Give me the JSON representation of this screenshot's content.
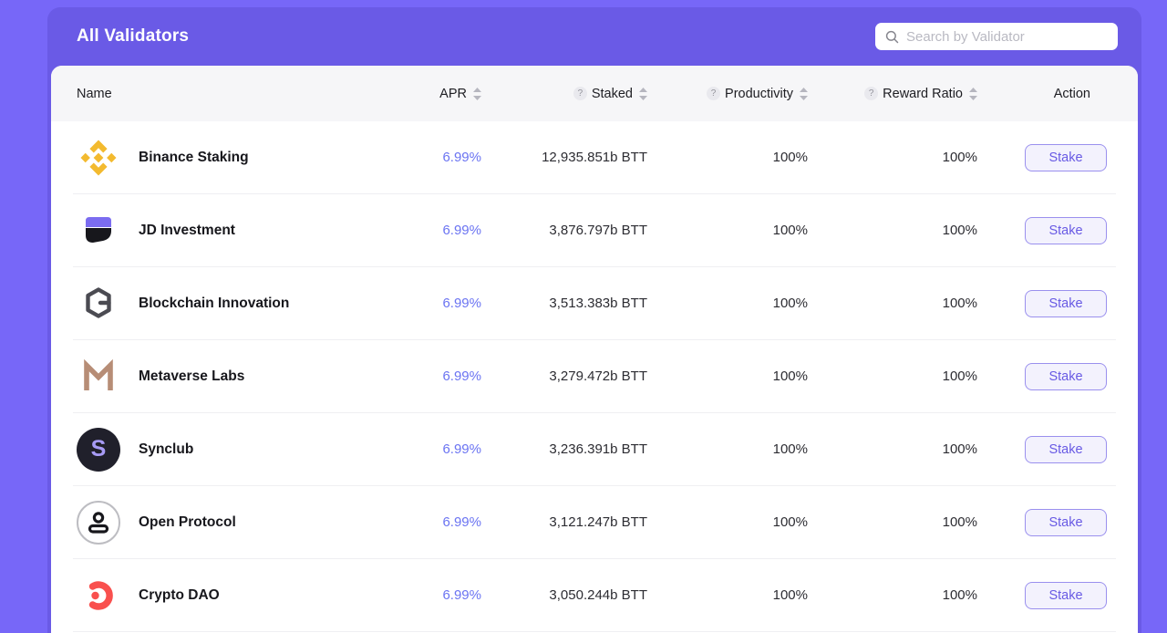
{
  "header": {
    "title": "All Validators",
    "search_placeholder": "Search by Validator"
  },
  "icons": {
    "help_glyph": "?",
    "search": "magnifier"
  },
  "colors": {
    "background": "#7767f8",
    "panel_accent": "#6a5ae6",
    "apr_link": "#6b74f2",
    "binance_yellow": "#f3ba2f",
    "jd_purple": "#7b6cf0",
    "jd_black": "#17171c",
    "blockchain_gray": "#4b4b52",
    "metaverse_tan": "#b78d76",
    "synclub_bg": "#20202b",
    "synclub_letter": "#a79bf5",
    "open_border": "#bdbdc2",
    "open_ink": "#17171c",
    "crypto_red": "#f9504e"
  },
  "table": {
    "columns": [
      {
        "key": "name",
        "label": "Name",
        "sortable": false,
        "help": false
      },
      {
        "key": "apr",
        "label": "APR",
        "sortable": true,
        "help": false
      },
      {
        "key": "staked",
        "label": "Staked",
        "sortable": true,
        "help": true
      },
      {
        "key": "productivity",
        "label": "Productivity",
        "sortable": true,
        "help": true
      },
      {
        "key": "reward_ratio",
        "label": "Reward Ratio",
        "sortable": true,
        "help": true
      },
      {
        "key": "action",
        "label": "Action",
        "sortable": false,
        "help": false
      }
    ],
    "rows": [
      {
        "name": "Binance Staking",
        "logo": "binance-logo",
        "apr": "6.99%",
        "staked": "12,935.851b BTT",
        "productivity": "100%",
        "reward_ratio": "100%",
        "action": "Stake"
      },
      {
        "name": "JD Investment",
        "logo": "jd-investment-logo",
        "apr": "6.99%",
        "staked": "3,876.797b BTT",
        "productivity": "100%",
        "reward_ratio": "100%",
        "action": "Stake"
      },
      {
        "name": "Blockchain Innovation",
        "logo": "blockchain-innovation-logo",
        "apr": "6.99%",
        "staked": "3,513.383b BTT",
        "productivity": "100%",
        "reward_ratio": "100%",
        "action": "Stake"
      },
      {
        "name": "Metaverse Labs",
        "logo": "metaverse-labs-logo",
        "apr": "6.99%",
        "staked": "3,279.472b BTT",
        "productivity": "100%",
        "reward_ratio": "100%",
        "action": "Stake"
      },
      {
        "name": "Synclub",
        "logo": "synclub-logo",
        "apr": "6.99%",
        "staked": "3,236.391b BTT",
        "productivity": "100%",
        "reward_ratio": "100%",
        "action": "Stake"
      },
      {
        "name": "Open Protocol",
        "logo": "open-protocol-logo",
        "apr": "6.99%",
        "staked": "3,121.247b BTT",
        "productivity": "100%",
        "reward_ratio": "100%",
        "action": "Stake"
      },
      {
        "name": "Crypto DAO",
        "logo": "crypto-dao-logo",
        "apr": "6.99%",
        "staked": "3,050.244b BTT",
        "productivity": "100%",
        "reward_ratio": "100%",
        "action": "Stake"
      }
    ]
  }
}
